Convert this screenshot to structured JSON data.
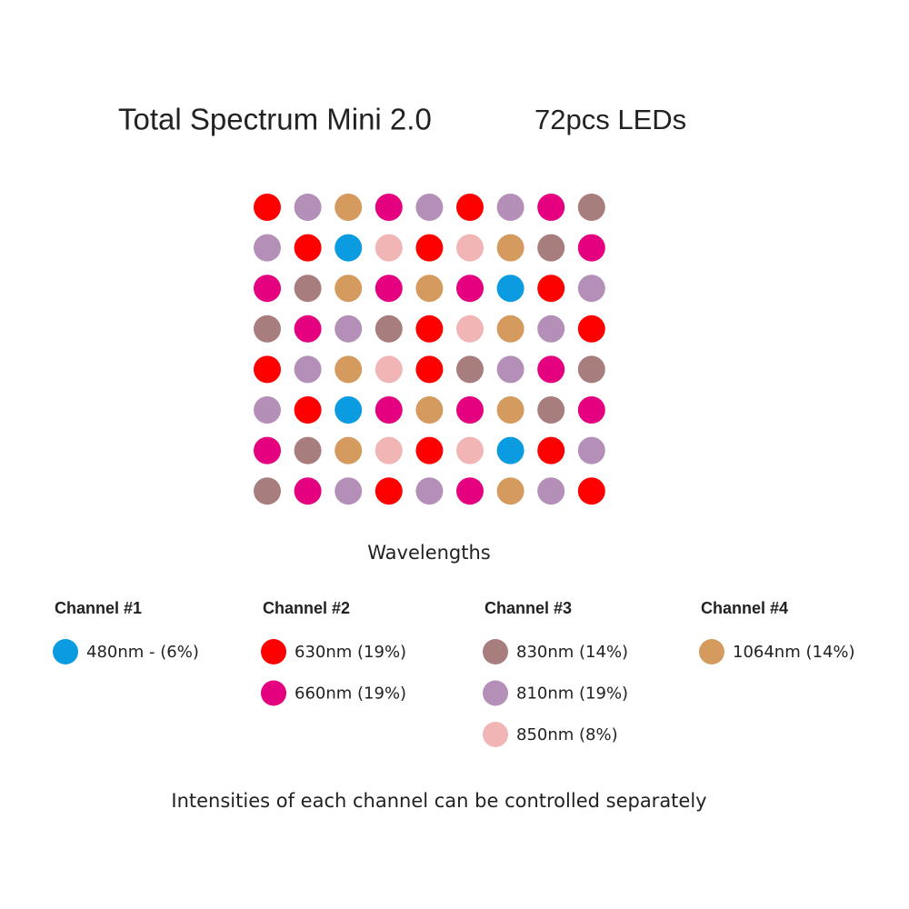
{
  "header": {
    "title": "Total Spectrum Mini 2.0",
    "subtitle": "72pcs LEDs"
  },
  "led_grid": [
    [
      "#ff0000",
      "#b48fb8",
      "#d49a5e",
      "#e4007f",
      "#b48fb8",
      "#ff0000",
      "#b48fb8",
      "#e4007f",
      "#a87d7d"
    ],
    [
      "#b48fb8",
      "#ff0000",
      "#0a9be0",
      "#f2b5b5",
      "#ff0000",
      "#f2b5b5",
      "#d49a5e",
      "#a87d7d",
      "#e4007f"
    ],
    [
      "#e4007f",
      "#a87d7d",
      "#d49a5e",
      "#e4007f",
      "#d49a5e",
      "#e4007f",
      "#0a9be0",
      "#ff0000",
      "#b48fb8"
    ],
    [
      "#a87d7d",
      "#e4007f",
      "#b48fb8",
      "#a87d7d",
      "#ff0000",
      "#f2b5b5",
      "#d49a5e",
      "#b48fb8",
      "#ff0000"
    ],
    [
      "#ff0000",
      "#b48fb8",
      "#d49a5e",
      "#f2b5b5",
      "#ff0000",
      "#a87d7d",
      "#b48fb8",
      "#e4007f",
      "#a87d7d"
    ],
    [
      "#b48fb8",
      "#ff0000",
      "#0a9be0",
      "#e4007f",
      "#d49a5e",
      "#e4007f",
      "#d49a5e",
      "#a87d7d",
      "#e4007f"
    ],
    [
      "#e4007f",
      "#a87d7d",
      "#d49a5e",
      "#f2b5b5",
      "#ff0000",
      "#f2b5b5",
      "#0a9be0",
      "#ff0000",
      "#b48fb8"
    ],
    [
      "#a87d7d",
      "#e4007f",
      "#b48fb8",
      "#ff0000",
      "#b48fb8",
      "#e4007f",
      "#d49a5e",
      "#b48fb8",
      "#ff0000"
    ]
  ],
  "legend": {
    "title": "Wavelengths",
    "channels": [
      {
        "name": "Channel #1",
        "items": [
          {
            "label": "480nm - (6%)",
            "color": "#0a9be0"
          }
        ]
      },
      {
        "name": "Channel #2",
        "items": [
          {
            "label": "630nm (19%)",
            "color": "#ff0000"
          },
          {
            "label": "660nm (19%)",
            "color": "#e4007f"
          }
        ]
      },
      {
        "name": "Channel #3",
        "items": [
          {
            "label": "830nm (14%)",
            "color": "#a87d7d"
          },
          {
            "label": "810nm (19%)",
            "color": "#b48fb8"
          },
          {
            "label": "850nm (8%)",
            "color": "#f2b5b5"
          }
        ]
      },
      {
        "name": "Channel #4",
        "items": [
          {
            "label": "1064nm (14%)",
            "color": "#d49a5e"
          }
        ]
      }
    ]
  },
  "footer": {
    "note": "Intensities of each channel can be controlled separately"
  }
}
